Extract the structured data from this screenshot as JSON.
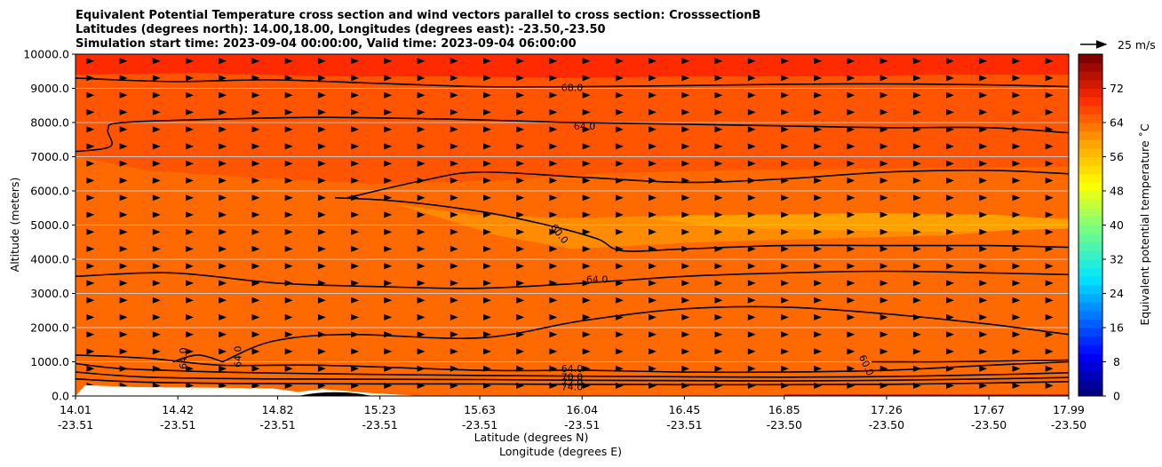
{
  "chart_data": {
    "type": "contourf",
    "title_lines": [
      "Equivalent Potential Temperature cross section and wind vectors parallel to cross section: CrosssectionB",
      "Latitudes (degrees north): 14.00,18.00, Longitudes (degrees east): -23.50,-23.50",
      "Simulation start time: 2023-09-04 00:00:00, Valid time: 2023-09-04 06:00:00"
    ],
    "xlabel_line1": "Latitude (degrees N)",
    "xlabel_line2": "Longitude (degrees E)",
    "ylabel": "Altitude (meters)",
    "colorbar_label": "Equivalent potential temperature ˚C",
    "quiver_key_label": "25 m/s",
    "xlim": [
      14.01,
      17.99
    ],
    "ylim": [
      0,
      10000
    ],
    "x_ticks": [
      {
        "lat": "14.01",
        "lon": "-23.51",
        "v": 14.01
      },
      {
        "lat": "14.42",
        "lon": "-23.51",
        "v": 14.42
      },
      {
        "lat": "14.82",
        "lon": "-23.51",
        "v": 14.82
      },
      {
        "lat": "15.23",
        "lon": "-23.51",
        "v": 15.23
      },
      {
        "lat": "15.63",
        "lon": "-23.51",
        "v": 15.63
      },
      {
        "lat": "16.04",
        "lon": "-23.51",
        "v": 16.04
      },
      {
        "lat": "16.45",
        "lon": "-23.51",
        "v": 16.45
      },
      {
        "lat": "16.85",
        "lon": "-23.50",
        "v": 16.85
      },
      {
        "lat": "17.26",
        "lon": "-23.50",
        "v": 17.26
      },
      {
        "lat": "17.67",
        "lon": "-23.50",
        "v": 17.67
      },
      {
        "lat": "17.99",
        "lon": "-23.50",
        "v": 17.99
      }
    ],
    "y_ticks": [
      {
        "label": "0.0",
        "v": 0
      },
      {
        "label": "1000.0",
        "v": 1000
      },
      {
        "label": "2000.0",
        "v": 2000
      },
      {
        "label": "3000.0",
        "v": 3000
      },
      {
        "label": "4000.0",
        "v": 4000
      },
      {
        "label": "5000.0",
        "v": 5000
      },
      {
        "label": "6000.0",
        "v": 6000
      },
      {
        "label": "7000.0",
        "v": 7000
      },
      {
        "label": "8000.0",
        "v": 8000
      },
      {
        "label": "9000.0",
        "v": 9000
      },
      {
        "label": "10000.0",
        "v": 10000
      }
    ],
    "colorbar_ticks": [
      {
        "label": "0",
        "v": 0
      },
      {
        "label": "8",
        "v": 8
      },
      {
        "label": "16",
        "v": 16
      },
      {
        "label": "24",
        "v": 24
      },
      {
        "label": "32",
        "v": 32
      },
      {
        "label": "40",
        "v": 40
      },
      {
        "label": "48",
        "v": 48
      },
      {
        "label": "56",
        "v": 56
      },
      {
        "label": "64",
        "v": 64
      },
      {
        "label": "72",
        "v": 72
      }
    ],
    "colorbar_range": [
      0,
      80
    ],
    "filled_bands": [
      {
        "theta": 74,
        "color": "#e60e00",
        "top": [
          [
            14.01,
            1300
          ],
          [
            14.2,
            1200
          ],
          [
            14.35,
            800
          ],
          [
            14.6,
            700
          ],
          [
            15.0,
            600
          ],
          [
            15.5,
            600
          ],
          [
            16.0,
            550
          ],
          [
            16.5,
            500
          ],
          [
            17.0,
            470
          ],
          [
            17.5,
            500
          ],
          [
            17.99,
            560
          ]
        ]
      },
      {
        "theta": 67,
        "color": "#ff3b00",
        "top": [
          [
            14.01,
            3500
          ],
          [
            14.4,
            3560
          ],
          [
            14.8,
            3350
          ],
          [
            15.4,
            3200
          ],
          [
            15.9,
            3250
          ],
          [
            16.3,
            3400
          ],
          [
            16.8,
            3500
          ],
          [
            17.3,
            3550
          ],
          [
            17.99,
            3600
          ]
        ]
      },
      {
        "theta": 62,
        "color": "#ff6a00",
        "top": [
          [
            14.01,
            7000
          ],
          [
            14.3,
            6600
          ],
          [
            14.7,
            6400
          ],
          [
            15.2,
            6200
          ],
          [
            15.7,
            6300
          ],
          [
            16.1,
            6500
          ],
          [
            16.6,
            6600
          ],
          [
            17.2,
            6650
          ],
          [
            17.99,
            6700
          ]
        ]
      },
      {
        "theta": 58,
        "color": "#ff8c00",
        "top": [
          [
            15.3,
            5600
          ],
          [
            15.6,
            5300
          ],
          [
            16.0,
            5200
          ],
          [
            16.5,
            5300
          ],
          [
            17.0,
            5300
          ],
          [
            17.5,
            5200
          ],
          [
            17.99,
            5200
          ]
        ],
        "bottom": [
          [
            17.99,
            5000
          ],
          [
            17.5,
            4700
          ],
          [
            17.0,
            4600
          ],
          [
            16.5,
            4500
          ],
          [
            16.0,
            4300
          ],
          [
            15.7,
            4700
          ],
          [
            15.3,
            5600
          ]
        ]
      },
      {
        "theta": 56,
        "color": "#ffa200",
        "top": [
          [
            16.3,
            5200
          ],
          [
            16.7,
            5300
          ],
          [
            17.2,
            5350
          ],
          [
            17.7,
            5300
          ],
          [
            17.99,
            5150
          ]
        ],
        "bottom": [
          [
            17.99,
            4900
          ],
          [
            17.5,
            4800
          ],
          [
            17.0,
            4850
          ],
          [
            16.6,
            4950
          ],
          [
            16.3,
            5200
          ]
        ]
      },
      {
        "theta": 71,
        "color": "#ff2a00",
        "top": [
          [
            14.01,
            9400
          ],
          [
            14.5,
            9450
          ],
          [
            15.0,
            9350
          ],
          [
            15.5,
            9350
          ],
          [
            16.0,
            9300
          ],
          [
            16.5,
            9350
          ],
          [
            17.0,
            9350
          ],
          [
            17.5,
            9400
          ],
          [
            17.99,
            9400
          ]
        ]
      }
    ],
    "contour_lines": [
      {
        "level": 68.0,
        "points": [
          [
            14.01,
            9300
          ],
          [
            14.4,
            9200
          ],
          [
            14.8,
            9250
          ],
          [
            15.2,
            9150
          ],
          [
            15.63,
            9050
          ],
          [
            16.04,
            9050
          ],
          [
            16.45,
            9080
          ],
          [
            16.85,
            9120
          ],
          [
            17.26,
            9130
          ],
          [
            17.67,
            9100
          ],
          [
            17.99,
            9050
          ]
        ]
      },
      {
        "level": 64.0,
        "points": [
          [
            14.01,
            7150
          ],
          [
            14.15,
            7300
          ],
          [
            14.14,
            7800
          ],
          [
            14.2,
            8000
          ],
          [
            14.6,
            8100
          ],
          [
            15.0,
            8150
          ],
          [
            15.5,
            8100
          ],
          [
            16.0,
            8000
          ],
          [
            16.45,
            7950
          ],
          [
            16.85,
            7900
          ],
          [
            17.26,
            7850
          ],
          [
            17.67,
            7850
          ],
          [
            17.99,
            7700
          ]
        ]
      },
      {
        "level": 60.0,
        "points": [
          [
            15.05,
            5800
          ],
          [
            15.3,
            5700
          ],
          [
            15.63,
            5400
          ],
          [
            15.9,
            5000
          ],
          [
            16.1,
            4600
          ],
          [
            16.2,
            4250
          ],
          [
            16.45,
            4300
          ],
          [
            16.85,
            4400
          ],
          [
            17.26,
            4400
          ],
          [
            17.67,
            4400
          ],
          [
            17.99,
            4350
          ]
        ]
      },
      {
        "level": 60.0,
        "points": [
          [
            15.1,
            5800
          ],
          [
            15.4,
            6300
          ],
          [
            15.63,
            6550
          ],
          [
            16.04,
            6400
          ],
          [
            16.45,
            6250
          ],
          [
            16.85,
            6350
          ],
          [
            17.26,
            6550
          ],
          [
            17.67,
            6600
          ],
          [
            17.99,
            6500
          ]
        ]
      },
      {
        "level": 64.0,
        "points": [
          [
            14.01,
            3500
          ],
          [
            14.4,
            3600
          ],
          [
            14.82,
            3300
          ],
          [
            15.23,
            3200
          ],
          [
            15.63,
            3150
          ],
          [
            16.04,
            3300
          ],
          [
            16.45,
            3500
          ],
          [
            16.85,
            3600
          ],
          [
            17.26,
            3650
          ],
          [
            17.67,
            3600
          ],
          [
            17.99,
            3550
          ]
        ]
      },
      {
        "level": 64.0,
        "points": [
          [
            14.6,
            1000
          ],
          [
            14.8,
            1600
          ],
          [
            15.1,
            1800
          ],
          [
            15.63,
            1700
          ],
          [
            16.04,
            2200
          ],
          [
            16.45,
            2550
          ],
          [
            16.85,
            2600
          ],
          [
            17.26,
            2400
          ],
          [
            17.67,
            2100
          ],
          [
            17.99,
            1800
          ]
        ]
      },
      {
        "level": 64.0,
        "points": [
          [
            14.4,
            1000
          ],
          [
            14.5,
            1200
          ],
          [
            14.6,
            1000
          ]
        ]
      },
      {
        "level": 64.0,
        "points": [
          [
            14.01,
            1200
          ],
          [
            14.3,
            1100
          ],
          [
            14.6,
            900
          ],
          [
            15.0,
            900
          ],
          [
            15.63,
            750
          ],
          [
            16.04,
            750
          ],
          [
            16.45,
            700
          ],
          [
            16.85,
            700
          ],
          [
            17.26,
            750
          ],
          [
            17.67,
            900
          ],
          [
            17.99,
            1000
          ]
        ]
      },
      {
        "level": 60.0,
        "points": [
          [
            17.2,
            1000
          ],
          [
            17.5,
            1000
          ],
          [
            17.99,
            1050
          ]
        ]
      },
      {
        "level": 70.0,
        "points": [
          [
            14.01,
            950
          ],
          [
            14.2,
            800
          ],
          [
            14.6,
            700
          ],
          [
            15.0,
            650
          ],
          [
            15.63,
            600
          ],
          [
            16.04,
            580
          ],
          [
            16.45,
            560
          ],
          [
            16.85,
            550
          ],
          [
            17.26,
            570
          ],
          [
            17.67,
            620
          ],
          [
            17.99,
            680
          ]
        ]
      },
      {
        "level": 72.0,
        "points": [
          [
            14.01,
            700
          ],
          [
            14.3,
            550
          ],
          [
            14.8,
            500
          ],
          [
            15.63,
            480
          ],
          [
            16.04,
            460
          ],
          [
            16.45,
            450
          ],
          [
            16.85,
            440
          ],
          [
            17.26,
            460
          ],
          [
            17.67,
            500
          ],
          [
            17.99,
            540
          ]
        ]
      },
      {
        "level": 74.0,
        "points": [
          [
            14.01,
            500
          ],
          [
            14.3,
            400
          ],
          [
            14.8,
            360
          ],
          [
            15.63,
            350
          ],
          [
            16.04,
            340
          ],
          [
            16.45,
            330
          ],
          [
            16.85,
            330
          ],
          [
            17.26,
            340
          ],
          [
            17.67,
            380
          ],
          [
            17.99,
            420
          ]
        ]
      }
    ],
    "contour_labels": [
      {
        "text": "68.0",
        "x": 16.0,
        "y": 9030,
        "rot": 0
      },
      {
        "text": "64.0",
        "x": 16.05,
        "y": 7900,
        "rot": 0
      },
      {
        "text": "60.0",
        "x": 15.95,
        "y": 4750,
        "rot": 52
      },
      {
        "text": "64.0",
        "x": 16.1,
        "y": 3420,
        "rot": 0
      },
      {
        "text": "64.0",
        "x": 14.44,
        "y": 1100,
        "rot": -90
      },
      {
        "text": "64.0",
        "x": 14.66,
        "y": 1150,
        "rot": -90
      },
      {
        "text": "64.0",
        "x": 16.0,
        "y": 800,
        "rot": 0
      },
      {
        "text": "60.0",
        "x": 17.18,
        "y": 900,
        "rot": 65
      },
      {
        "text": "70.0",
        "x": 16.0,
        "y": 560,
        "rot": 0
      },
      {
        "text": "72.0",
        "x": 16.0,
        "y": 400,
        "rot": 0
      },
      {
        "text": "74.0",
        "x": 16.0,
        "y": 270,
        "rot": 0
      }
    ],
    "terrain": [
      [
        14.01,
        0
      ],
      [
        14.05,
        320
      ],
      [
        14.1,
        300
      ],
      [
        14.25,
        260
      ],
      [
        14.6,
        240
      ],
      [
        14.8,
        220
      ],
      [
        14.9,
        120
      ],
      [
        15.0,
        200
      ],
      [
        15.2,
        80
      ],
      [
        15.4,
        0
      ]
    ],
    "wind_vectors": {
      "u_ms": 5,
      "x_start": 14.01,
      "x_step": 0.1325,
      "y_start": 100,
      "y_step": 500,
      "count_x": 31,
      "count_y": 20
    }
  }
}
